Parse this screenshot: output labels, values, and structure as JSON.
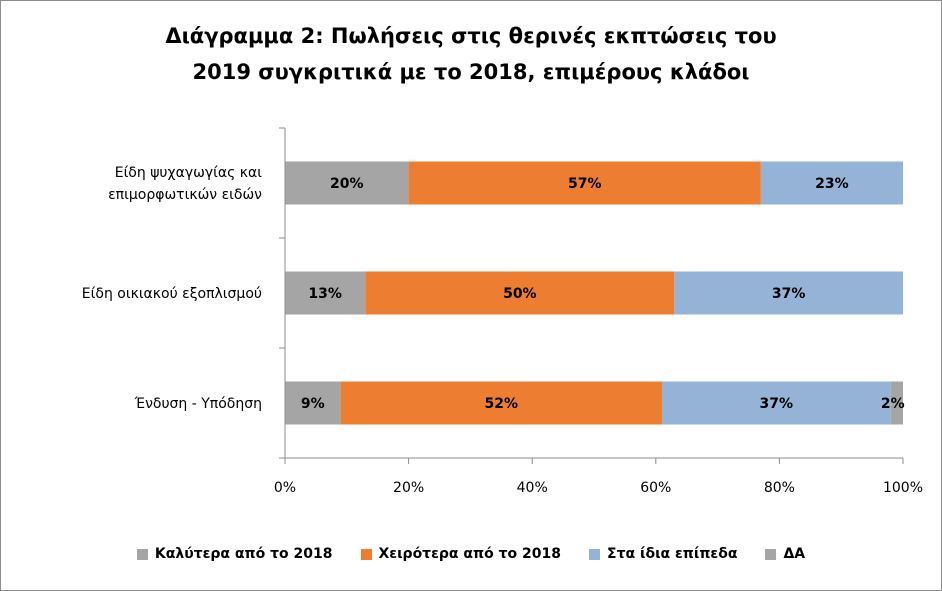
{
  "chart_data": {
    "type": "bar",
    "orientation": "horizontal",
    "stacked": true,
    "percent": true,
    "title_lines": [
      "Διάγραμμα 2: Πωλήσεις στις θερινές εκπτώσεις του",
      "2019 συγκριτικά με το 2018, επιμέρους κλάδοι"
    ],
    "categories": [
      [
        "Είδη ψυχαγωγίας και",
        "επιμορφωτικών ειδών"
      ],
      [
        "Είδη οικιακού εξοπλισμού"
      ],
      [
        "Ένδυση - Υπόδηση"
      ]
    ],
    "series": [
      {
        "name": "Καλύτερα από το 2018",
        "color": "#a5a5a5",
        "values": [
          20,
          13,
          9
        ],
        "labels": [
          "20%",
          "13%",
          "9%"
        ]
      },
      {
        "name": "Χειρότερα από το 2018",
        "color": "#ed7d31",
        "values": [
          57,
          50,
          52
        ],
        "labels": [
          "57%",
          "50%",
          "52%"
        ]
      },
      {
        "name": "Στα ίδια επίπεδα",
        "color": "#95b3d7",
        "values": [
          23,
          37,
          37
        ],
        "labels": [
          "23%",
          "37%",
          "37%"
        ]
      },
      {
        "name": "ΔΑ",
        "color": "#a5a5a5",
        "values": [
          0,
          0,
          2
        ],
        "labels": [
          "",
          "",
          "2%"
        ]
      }
    ],
    "xlim": [
      0,
      100
    ],
    "xticks": [
      "0%",
      "20%",
      "40%",
      "60%",
      "80%",
      "100%"
    ],
    "grid": false,
    "legend_position": "bottom"
  }
}
